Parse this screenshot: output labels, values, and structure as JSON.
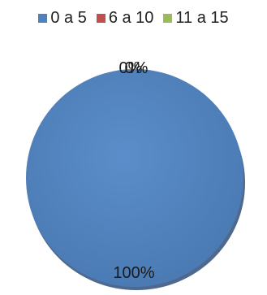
{
  "chart_data": {
    "type": "pie",
    "categories": [
      "0 a 5",
      "6 a 10",
      "11 a 15"
    ],
    "values": [
      100,
      0,
      0
    ],
    "data_labels": [
      "100%",
      "0%",
      "0%"
    ],
    "colors": [
      "#4F81BD",
      "#C0504D",
      "#9BBB59"
    ],
    "legend_position": "top",
    "title": ""
  }
}
